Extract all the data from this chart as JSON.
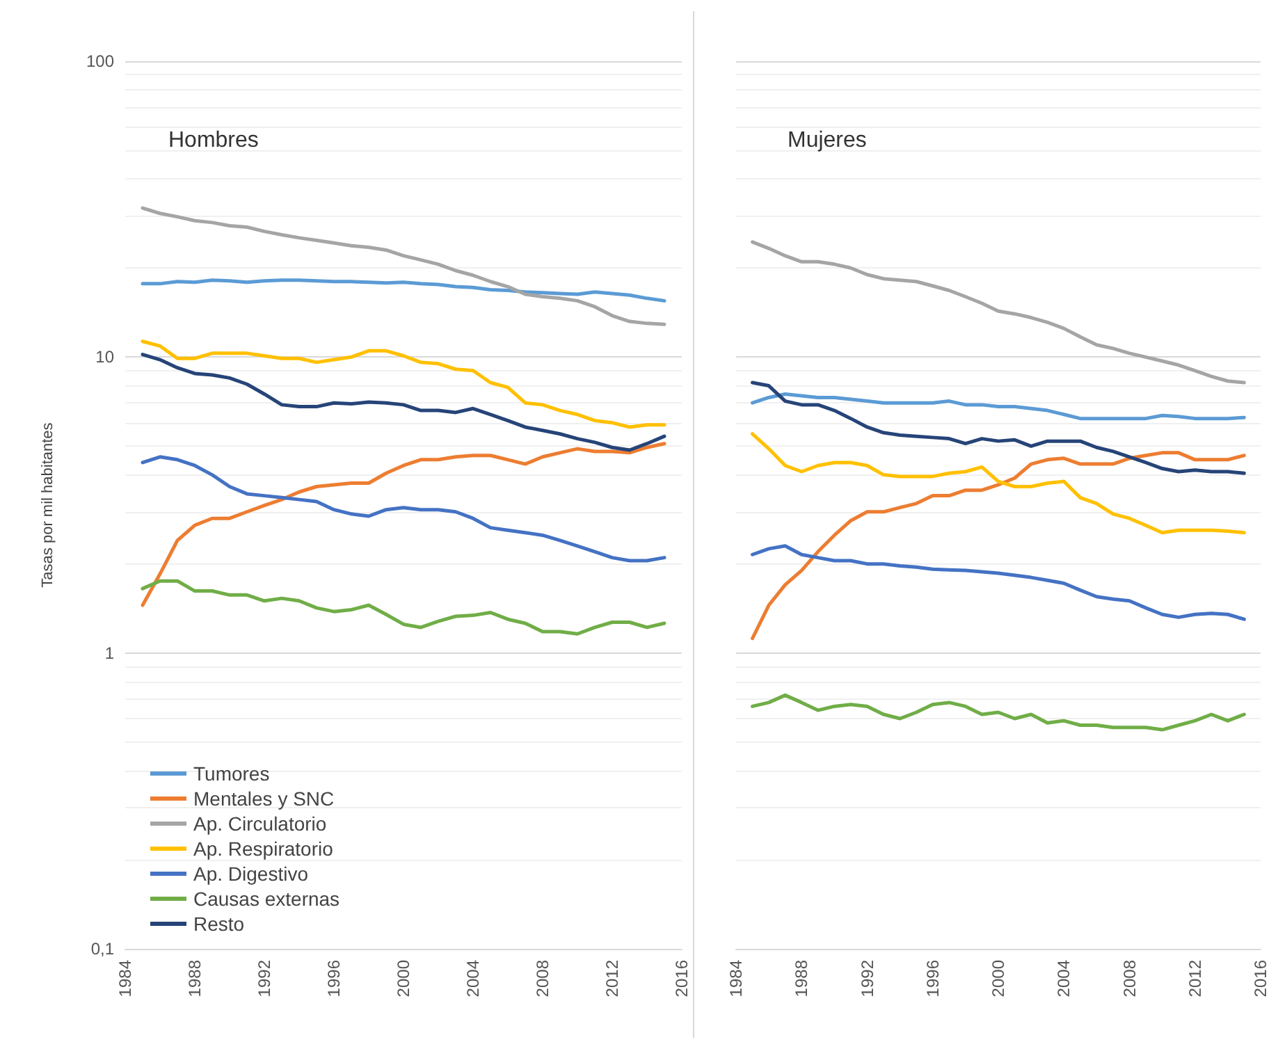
{
  "chart_data": [
    {
      "type": "line",
      "title": "Hombres",
      "ylabel": "Tasas por mil habitantes",
      "log": "y",
      "grid": "y",
      "legend": "bottom left",
      "line_style": "solid",
      "xlim": [
        1984,
        2016
      ],
      "xticks": [
        1984,
        1988,
        1992,
        1996,
        2000,
        2004,
        2008,
        2012,
        2016
      ],
      "ylim": [
        0.1,
        100
      ],
      "yticks": [
        {
          "value": 0.1,
          "label": "0,1"
        },
        1,
        10,
        100
      ],
      "x": [
        1985,
        1986,
        1987,
        1988,
        1989,
        1990,
        1991,
        1992,
        1993,
        1994,
        1995,
        1996,
        1997,
        1998,
        1999,
        2000,
        2001,
        2002,
        2003,
        2004,
        2005,
        2006,
        2007,
        2008,
        2009,
        2010,
        2011,
        2012,
        2013,
        2014,
        2015
      ],
      "series": [
        {
          "name": "Tumores",
          "color": "#5b9bd5",
          "values": [
            17.7,
            17.7,
            18.0,
            17.9,
            18.2,
            18.1,
            17.9,
            18.1,
            18.2,
            18.2,
            18.1,
            18.0,
            18.0,
            17.9,
            17.8,
            17.9,
            17.7,
            17.6,
            17.3,
            17.2,
            16.9,
            16.8,
            16.6,
            16.5,
            16.4,
            16.3,
            16.6,
            16.4,
            16.2,
            15.8,
            15.5
          ]
        },
        {
          "name": "Mentales y SNC",
          "color": "#ed7d31",
          "values": [
            1.45,
            1.85,
            2.4,
            2.7,
            2.85,
            2.85,
            3.0,
            3.15,
            3.3,
            3.5,
            3.65,
            3.7,
            3.75,
            3.75,
            4.05,
            4.3,
            4.5,
            4.5,
            4.6,
            4.65,
            4.65,
            4.5,
            4.35,
            4.6,
            4.75,
            4.9,
            4.8,
            4.8,
            4.75,
            4.95,
            5.1
          ]
        },
        {
          "name": "Ap. Circulatorio",
          "color": "#a5a5a5",
          "values": [
            31.9,
            30.6,
            29.8,
            28.9,
            28.5,
            27.8,
            27.5,
            26.6,
            25.9,
            25.3,
            24.8,
            24.3,
            23.8,
            23.5,
            23.0,
            22.0,
            21.3,
            20.6,
            19.6,
            18.9,
            18.0,
            17.3,
            16.3,
            16.0,
            15.8,
            15.5,
            14.8,
            13.8,
            13.2,
            13.0,
            12.9
          ]
        },
        {
          "name": "Ap. Respiratorio",
          "color": "#ffc000",
          "values": [
            11.3,
            10.9,
            9.9,
            9.9,
            10.3,
            10.3,
            10.3,
            10.1,
            9.9,
            9.9,
            9.6,
            9.8,
            10.0,
            10.5,
            10.5,
            10.1,
            9.6,
            9.5,
            9.1,
            9.0,
            8.2,
            7.9,
            7.0,
            6.9,
            6.6,
            6.4,
            6.1,
            6.0,
            5.8,
            5.9,
            5.9
          ]
        },
        {
          "name": "Ap. Digestivo",
          "color": "#4472c4",
          "values": [
            4.4,
            4.6,
            4.5,
            4.3,
            4.0,
            3.65,
            3.45,
            3.4,
            3.35,
            3.3,
            3.25,
            3.05,
            2.95,
            2.9,
            3.05,
            3.1,
            3.05,
            3.05,
            3.0,
            2.85,
            2.65,
            2.6,
            2.55,
            2.5,
            2.4,
            2.3,
            2.2,
            2.1,
            2.05,
            2.05,
            2.1
          ]
        },
        {
          "name": "Causas externas",
          "color": "#70ad47",
          "values": [
            1.65,
            1.75,
            1.75,
            1.62,
            1.62,
            1.57,
            1.57,
            1.5,
            1.53,
            1.5,
            1.42,
            1.38,
            1.4,
            1.45,
            1.35,
            1.25,
            1.22,
            1.28,
            1.33,
            1.34,
            1.37,
            1.3,
            1.26,
            1.18,
            1.18,
            1.16,
            1.22,
            1.27,
            1.27,
            1.22,
            1.26
          ]
        },
        {
          "name": "Resto",
          "color": "#264478",
          "values": [
            10.2,
            9.8,
            9.2,
            8.8,
            8.7,
            8.5,
            8.1,
            7.5,
            6.9,
            6.8,
            6.8,
            7.0,
            6.95,
            7.05,
            7.0,
            6.9,
            6.6,
            6.6,
            6.5,
            6.7,
            6.4,
            6.1,
            5.8,
            5.65,
            5.5,
            5.3,
            5.15,
            4.95,
            4.85,
            5.1,
            5.4
          ]
        }
      ]
    },
    {
      "type": "line",
      "title": "Mujeres",
      "log": "y",
      "grid": "y",
      "tick_labels": "x",
      "line_style": "solid",
      "xlim": [
        1984,
        2016
      ],
      "xticks": [
        1984,
        1988,
        1992,
        1996,
        2000,
        2004,
        2008,
        2012,
        2016
      ],
      "ylim": [
        0.1,
        100
      ],
      "x": [
        1985,
        1986,
        1987,
        1988,
        1989,
        1990,
        1991,
        1992,
        1993,
        1994,
        1995,
        1996,
        1997,
        1998,
        1999,
        2000,
        2001,
        2002,
        2003,
        2004,
        2005,
        2006,
        2007,
        2008,
        2009,
        2010,
        2011,
        2012,
        2013,
        2014,
        2015
      ],
      "series": [
        {
          "color": "#5b9bd5",
          "values": [
            7.0,
            7.3,
            7.5,
            7.4,
            7.3,
            7.3,
            7.2,
            7.1,
            7.0,
            7.0,
            7.0,
            7.0,
            7.1,
            6.9,
            6.9,
            6.8,
            6.8,
            6.7,
            6.6,
            6.4,
            6.2,
            6.2,
            6.2,
            6.2,
            6.2,
            6.35,
            6.3,
            6.2,
            6.2,
            6.2,
            6.25
          ]
        },
        {
          "color": "#ed7d31",
          "values": [
            1.12,
            1.45,
            1.7,
            1.9,
            2.2,
            2.5,
            2.8,
            3.0,
            3.0,
            3.1,
            3.2,
            3.4,
            3.4,
            3.55,
            3.55,
            3.7,
            3.9,
            4.35,
            4.5,
            4.55,
            4.35,
            4.35,
            4.35,
            4.55,
            4.65,
            4.75,
            4.75,
            4.5,
            4.5,
            4.5,
            4.65
          ]
        },
        {
          "color": "#a5a5a5",
          "values": [
            24.5,
            23.3,
            22.0,
            21.0,
            21.0,
            20.6,
            20.0,
            19.0,
            18.4,
            18.2,
            18.0,
            17.4,
            16.8,
            16.0,
            15.2,
            14.3,
            14.0,
            13.6,
            13.1,
            12.5,
            11.7,
            11.0,
            10.7,
            10.3,
            10.0,
            9.7,
            9.4,
            9.0,
            8.6,
            8.3,
            8.2
          ]
        },
        {
          "color": "#ffc000",
          "values": [
            5.5,
            4.9,
            4.3,
            4.1,
            4.3,
            4.4,
            4.4,
            4.3,
            4.0,
            3.95,
            3.95,
            3.95,
            4.05,
            4.1,
            4.25,
            3.8,
            3.65,
            3.65,
            3.75,
            3.8,
            3.35,
            3.2,
            2.95,
            2.85,
            2.7,
            2.55,
            2.6,
            2.6,
            2.6,
            2.58,
            2.55
          ]
        },
        {
          "color": "#4472c4",
          "values": [
            2.15,
            2.25,
            2.3,
            2.15,
            2.1,
            2.05,
            2.05,
            2.0,
            2.0,
            1.97,
            1.95,
            1.92,
            1.91,
            1.9,
            1.88,
            1.86,
            1.83,
            1.8,
            1.76,
            1.72,
            1.63,
            1.55,
            1.52,
            1.5,
            1.42,
            1.35,
            1.32,
            1.35,
            1.36,
            1.35,
            1.3
          ]
        },
        {
          "color": "#70ad47",
          "values": [
            0.66,
            0.68,
            0.72,
            0.68,
            0.64,
            0.66,
            0.67,
            0.66,
            0.62,
            0.6,
            0.63,
            0.67,
            0.68,
            0.66,
            0.62,
            0.63,
            0.6,
            0.62,
            0.58,
            0.59,
            0.57,
            0.57,
            0.56,
            0.56,
            0.56,
            0.55,
            0.57,
            0.59,
            0.62,
            0.59,
            0.62
          ]
        },
        {
          "color": "#264478",
          "values": [
            8.2,
            8.0,
            7.1,
            6.9,
            6.9,
            6.6,
            6.2,
            5.8,
            5.55,
            5.45,
            5.4,
            5.35,
            5.3,
            5.1,
            5.3,
            5.2,
            5.25,
            5.0,
            5.2,
            5.2,
            5.2,
            4.95,
            4.8,
            4.6,
            4.4,
            4.2,
            4.1,
            4.15,
            4.1,
            4.1,
            4.05
          ]
        }
      ]
    }
  ]
}
